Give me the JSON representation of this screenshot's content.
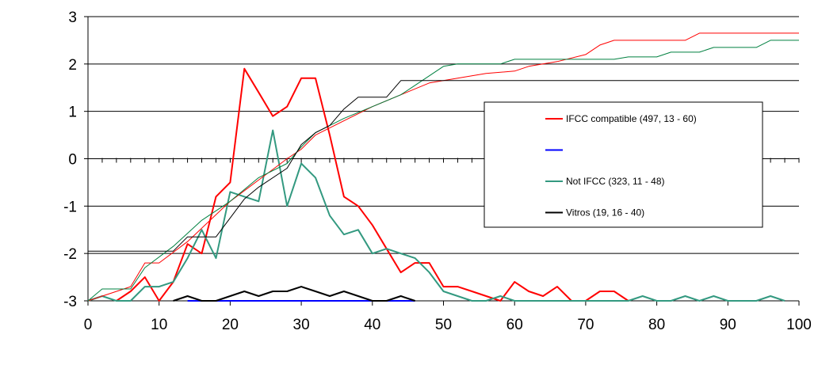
{
  "chart_data": {
    "type": "line",
    "title": "",
    "xlabel": "",
    "ylabel": "",
    "xlim": [
      0,
      100
    ],
    "ylim": [
      -3,
      3
    ],
    "x_ticks": [
      0,
      10,
      20,
      30,
      40,
      50,
      60,
      70,
      80,
      90,
      100
    ],
    "x_tick_labels": [
      "0",
      "10",
      "20",
      "30",
      "40",
      "50",
      "60",
      "70",
      "80",
      "90",
      "100"
    ],
    "y_ticks": [
      -3,
      -2,
      -1,
      0,
      1,
      2,
      3
    ],
    "y_tick_labels": [
      "-3",
      "-2",
      "-1",
      "0",
      "1",
      "2",
      "3"
    ],
    "grid": "horizontal",
    "legend_position": "right",
    "series": [
      {
        "name": "IFCC compatible (497, 13 - 60)",
        "color": "#ff0000",
        "width": 2,
        "in_legend": true,
        "points": [
          [
            4,
            -3
          ],
          [
            6,
            -2.8
          ],
          [
            8,
            -2.5
          ],
          [
            10,
            -3
          ],
          [
            12,
            -2.6
          ],
          [
            14,
            -1.8
          ],
          [
            16,
            -2
          ],
          [
            18,
            -0.8
          ],
          [
            20,
            -0.5
          ],
          [
            22,
            1.9
          ],
          [
            24,
            1.4
          ],
          [
            26,
            0.9
          ],
          [
            28,
            1.1
          ],
          [
            30,
            1.7
          ],
          [
            32,
            1.7
          ],
          [
            34,
            0.5
          ],
          [
            36,
            -0.8
          ],
          [
            38,
            -1
          ],
          [
            40,
            -1.4
          ],
          [
            42,
            -1.9
          ],
          [
            44,
            -2.4
          ],
          [
            46,
            -2.2
          ],
          [
            48,
            -2.2
          ],
          [
            50,
            -2.7
          ],
          [
            52,
            -2.7
          ],
          [
            54,
            -2.8
          ],
          [
            56,
            -2.9
          ],
          [
            58,
            -3
          ],
          [
            60,
            -2.6
          ],
          [
            62,
            -2.8
          ],
          [
            64,
            -2.9
          ],
          [
            66,
            -2.7
          ],
          [
            68,
            -3
          ],
          [
            70,
            -3
          ],
          [
            72,
            -2.8
          ],
          [
            74,
            -2.8
          ],
          [
            76,
            -3
          ]
        ]
      },
      {
        "name": "",
        "color": "#0000ff",
        "width": 2,
        "in_legend": true,
        "points": [
          [
            14,
            -3
          ],
          [
            46,
            -3
          ]
        ]
      },
      {
        "name": "Not IFCC (323, 11 - 48)",
        "color": "#339980",
        "width": 2,
        "in_legend": true,
        "points": [
          [
            0,
            -3
          ],
          [
            2,
            -2.9
          ],
          [
            4,
            -3
          ],
          [
            6,
            -3
          ],
          [
            8,
            -2.7
          ],
          [
            10,
            -2.7
          ],
          [
            12,
            -2.6
          ],
          [
            14,
            -2.1
          ],
          [
            16,
            -1.5
          ],
          [
            18,
            -2.1
          ],
          [
            20,
            -0.7
          ],
          [
            22,
            -0.8
          ],
          [
            24,
            -0.9
          ],
          [
            26,
            0.6
          ],
          [
            28,
            -1
          ],
          [
            30,
            -0.1
          ],
          [
            32,
            -0.4
          ],
          [
            34,
            -1.2
          ],
          [
            36,
            -1.6
          ],
          [
            38,
            -1.5
          ],
          [
            40,
            -2
          ],
          [
            42,
            -1.9
          ],
          [
            44,
            -2
          ],
          [
            46,
            -2.1
          ],
          [
            48,
            -2.4
          ],
          [
            50,
            -2.8
          ],
          [
            52,
            -2.9
          ],
          [
            54,
            -3
          ],
          [
            56,
            -3
          ],
          [
            58,
            -2.9
          ],
          [
            60,
            -3
          ],
          [
            62,
            -3
          ],
          [
            76,
            -3
          ],
          [
            78,
            -2.9
          ],
          [
            80,
            -3
          ],
          [
            82,
            -3
          ],
          [
            84,
            -2.9
          ],
          [
            86,
            -3
          ],
          [
            88,
            -2.9
          ],
          [
            90,
            -3
          ],
          [
            94,
            -3
          ],
          [
            96,
            -2.9
          ],
          [
            98,
            -3
          ]
        ]
      },
      {
        "name": "Vitros (19, 16 - 40)",
        "color": "#000000",
        "width": 2,
        "in_legend": true,
        "points": [
          [
            12,
            -3
          ],
          [
            14,
            -2.9
          ],
          [
            16,
            -3
          ],
          [
            18,
            -3
          ],
          [
            20,
            -2.9
          ],
          [
            22,
            -2.8
          ],
          [
            24,
            -2.9
          ],
          [
            26,
            -2.8
          ],
          [
            28,
            -2.8
          ],
          [
            30,
            -2.7
          ],
          [
            32,
            -2.8
          ],
          [
            34,
            -2.9
          ],
          [
            36,
            -2.8
          ],
          [
            38,
            -2.9
          ],
          [
            40,
            -3
          ],
          [
            42,
            -3
          ],
          [
            44,
            -2.9
          ],
          [
            46,
            -3
          ]
        ]
      },
      {
        "name": "",
        "color": "#ff0000",
        "width": 1,
        "in_legend": false,
        "points": [
          [
            0,
            -3
          ],
          [
            6,
            -2.7
          ],
          [
            8,
            -2.2
          ],
          [
            10,
            -2.2
          ],
          [
            14,
            -1.75
          ],
          [
            20,
            -0.9
          ],
          [
            24,
            -0.45
          ],
          [
            28,
            0
          ],
          [
            30,
            0.2
          ],
          [
            32,
            0.5
          ],
          [
            36,
            0.8
          ],
          [
            40,
            1.1
          ],
          [
            44,
            1.35
          ],
          [
            48,
            1.6
          ],
          [
            52,
            1.7
          ],
          [
            56,
            1.8
          ],
          [
            60,
            1.85
          ],
          [
            62,
            1.95
          ],
          [
            66,
            2.05
          ],
          [
            70,
            2.2
          ],
          [
            72,
            2.4
          ],
          [
            74,
            2.5
          ],
          [
            84,
            2.5
          ],
          [
            86,
            2.65
          ],
          [
            100,
            2.65
          ]
        ]
      },
      {
        "name": "",
        "color": "#008040",
        "width": 1,
        "in_legend": false,
        "points": [
          [
            0,
            -3
          ],
          [
            2,
            -2.75
          ],
          [
            6,
            -2.75
          ],
          [
            8,
            -2.3
          ],
          [
            12,
            -1.85
          ],
          [
            16,
            -1.3
          ],
          [
            20,
            -0.9
          ],
          [
            24,
            -0.4
          ],
          [
            28,
            -0.1
          ],
          [
            30,
            0.25
          ],
          [
            32,
            0.55
          ],
          [
            36,
            0.85
          ],
          [
            40,
            1.1
          ],
          [
            44,
            1.35
          ],
          [
            46,
            1.55
          ],
          [
            50,
            1.95
          ],
          [
            52,
            2
          ],
          [
            58,
            2
          ],
          [
            60,
            2.1
          ],
          [
            74,
            2.1
          ],
          [
            76,
            2.15
          ],
          [
            80,
            2.15
          ],
          [
            82,
            2.25
          ],
          [
            86,
            2.25
          ],
          [
            88,
            2.35
          ],
          [
            94,
            2.35
          ],
          [
            96,
            2.5
          ],
          [
            100,
            2.5
          ]
        ]
      },
      {
        "name": "",
        "color": "#000000",
        "width": 1,
        "in_legend": false,
        "points": [
          [
            0,
            -1.95
          ],
          [
            12,
            -1.95
          ],
          [
            14,
            -1.65
          ],
          [
            18,
            -1.65
          ],
          [
            20,
            -1.25
          ],
          [
            22,
            -0.85
          ],
          [
            24,
            -0.6
          ],
          [
            28,
            -0.2
          ],
          [
            30,
            0.3
          ],
          [
            32,
            0.55
          ],
          [
            34,
            0.7
          ],
          [
            36,
            1.05
          ],
          [
            38,
            1.3
          ],
          [
            42,
            1.3
          ],
          [
            44,
            1.65
          ],
          [
            100,
            1.65
          ]
        ]
      }
    ]
  }
}
